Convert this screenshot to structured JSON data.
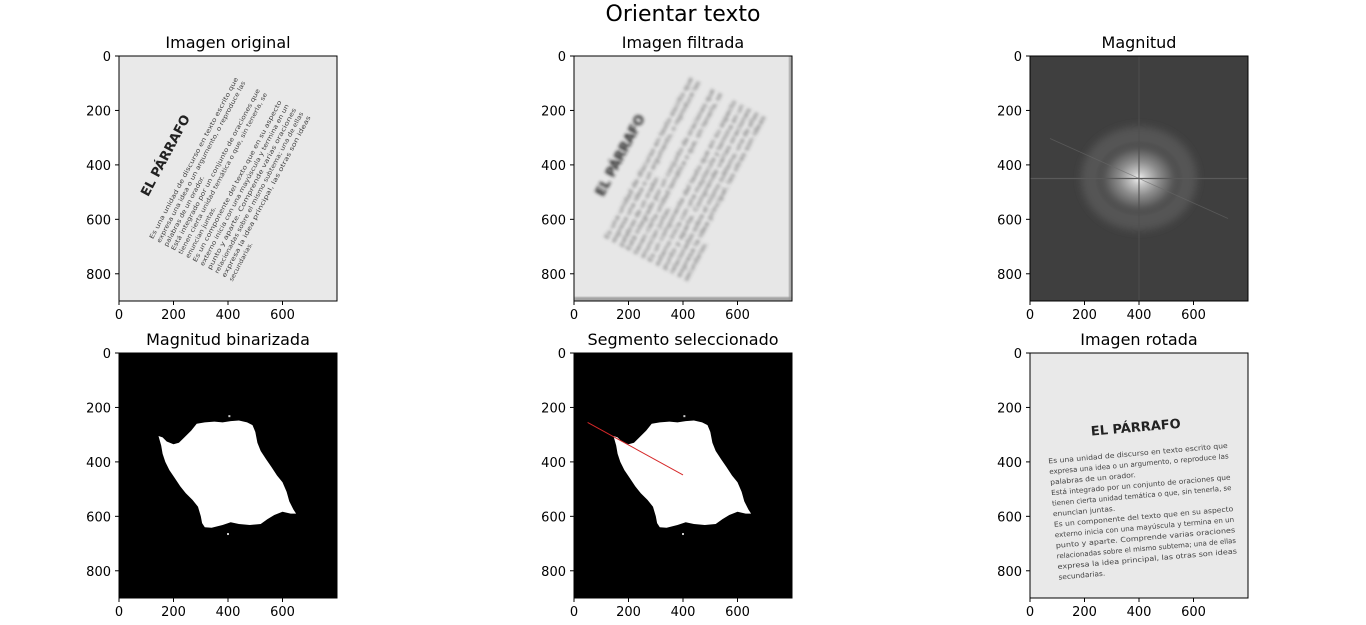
{
  "figure": {
    "suptitle": "Orientar texto"
  },
  "chart_data": [
    {
      "type": "image",
      "title": "Imagen original",
      "content": "rotated-text-photo",
      "xlim": [
        0,
        800
      ],
      "ylim": [
        900,
        0
      ],
      "xticks": [
        0,
        200,
        400,
        600
      ],
      "yticks": [
        0,
        200,
        400,
        600,
        800
      ],
      "text_rotation_deg": -62,
      "heading": "EL PÁRRAFO",
      "paragraph_lines": [
        "Es una unidad de discurso en texto escrito que",
        "expresa una idea o un argumento, o reproduce las",
        "palabras de un orador.",
        "Está integrado por un conjunto de oraciones que",
        "tienen cierta unidad temática o que, sin tenerla, se",
        "enuncian juntas.",
        "Es un componente del texto que en su aspecto",
        "externo inicia con una mayúscula y termina en un",
        "punto y aparte. Comprende varias oraciones",
        "relacionadas sobre el mismo subtema; una de ellas",
        "expresa la idea principal, las otras son ideas",
        "secundarias."
      ]
    },
    {
      "type": "image",
      "title": "Imagen filtrada",
      "content": "blurred-rotated-text",
      "xlim": [
        0,
        800
      ],
      "ylim": [
        900,
        0
      ],
      "xticks": [
        0,
        200,
        400,
        600
      ],
      "yticks": [
        0,
        200,
        400,
        600,
        800
      ],
      "text_rotation_deg": -62
    },
    {
      "type": "heatmap",
      "title": "Magnitud",
      "content": "fft-magnitude-spectrum",
      "colormap": "gray",
      "xlim": [
        0,
        800
      ],
      "ylim": [
        900,
        0
      ],
      "xticks": [
        0,
        200,
        400,
        600
      ],
      "yticks": [
        0,
        200,
        400,
        600,
        800
      ],
      "center": [
        400,
        450
      ]
    },
    {
      "type": "heatmap",
      "title": "Magnitud binarizada",
      "content": "binary-mask",
      "colormap": "gray",
      "xlim": [
        0,
        800
      ],
      "ylim": [
        900,
        0
      ],
      "xticks": [
        0,
        200,
        400,
        600
      ],
      "yticks": [
        0,
        200,
        400,
        600,
        800
      ],
      "blob_outline": [
        [
          145,
          305
        ],
        [
          160,
          310
        ],
        [
          175,
          325
        ],
        [
          200,
          335
        ],
        [
          220,
          330
        ],
        [
          240,
          310
        ],
        [
          265,
          285
        ],
        [
          285,
          260
        ],
        [
          315,
          255
        ],
        [
          350,
          252
        ],
        [
          380,
          255
        ],
        [
          410,
          250
        ],
        [
          440,
          248
        ],
        [
          470,
          255
        ],
        [
          490,
          265
        ],
        [
          500,
          290
        ],
        [
          508,
          330
        ],
        [
          520,
          360
        ],
        [
          540,
          390
        ],
        [
          560,
          420
        ],
        [
          580,
          450
        ],
        [
          600,
          475
        ],
        [
          615,
          510
        ],
        [
          625,
          545
        ],
        [
          640,
          575
        ],
        [
          650,
          590
        ],
        [
          630,
          590
        ],
        [
          600,
          583
        ],
        [
          570,
          595
        ],
        [
          545,
          610
        ],
        [
          520,
          628
        ],
        [
          480,
          632
        ],
        [
          440,
          628
        ],
        [
          410,
          622
        ],
        [
          380,
          632
        ],
        [
          340,
          642
        ],
        [
          315,
          640
        ],
        [
          305,
          625
        ],
        [
          300,
          600
        ],
        [
          290,
          565
        ],
        [
          270,
          540
        ],
        [
          245,
          515
        ],
        [
          225,
          490
        ],
        [
          205,
          460
        ],
        [
          185,
          430
        ],
        [
          170,
          400
        ],
        [
          160,
          370
        ],
        [
          155,
          340
        ]
      ],
      "specks": [
        [
          405,
          232
        ],
        [
          400,
          665
        ]
      ]
    },
    {
      "type": "heatmap",
      "title": "Segmento seleccionado",
      "content": "binary-mask-with-segment",
      "colormap": "gray",
      "xlim": [
        0,
        800
      ],
      "ylim": [
        900,
        0
      ],
      "xticks": [
        0,
        200,
        400,
        600
      ],
      "yticks": [
        0,
        200,
        400,
        600,
        800
      ],
      "segment": {
        "color": "#d62728",
        "x": [
          50,
          400
        ],
        "y": [
          255,
          448
        ]
      }
    },
    {
      "type": "image",
      "title": "Imagen rotada",
      "content": "deskewed-text",
      "xlim": [
        0,
        800
      ],
      "ylim": [
        900,
        0
      ],
      "xticks": [
        0,
        200,
        400,
        600
      ],
      "yticks": [
        0,
        200,
        400,
        600,
        800
      ],
      "text_rotation_deg": -5
    }
  ]
}
